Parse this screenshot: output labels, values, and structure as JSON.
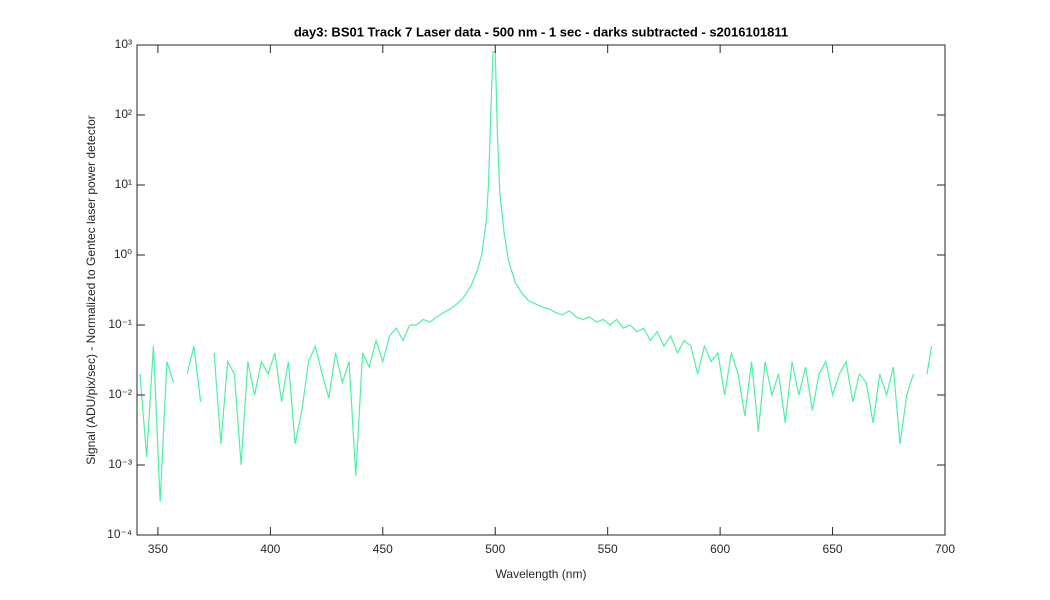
{
  "chart_data": {
    "type": "line",
    "title": "day3: BS01  Track 7 Laser data - 500 nm - 1 sec - darks subtracted - s2016101811",
    "xlabel": "Wavelength (nm)",
    "ylabel": "Signal (ADU/pix/sec) - Normalized to Gentec laser power detector",
    "ylog": true,
    "xlim": [
      340.7,
      700
    ],
    "ylim": [
      0.0001,
      1000
    ],
    "xticks": [
      350,
      400,
      450,
      500,
      550,
      600,
      650,
      700
    ],
    "yticks": [
      {
        "value": 0.0001,
        "label": "10⁻⁴"
      },
      {
        "value": 0.001,
        "label": "10⁻³"
      },
      {
        "value": 0.01,
        "label": "10⁻²"
      },
      {
        "value": 0.1,
        "label": "10⁻¹"
      },
      {
        "value": 1,
        "label": "10⁰"
      },
      {
        "value": 10,
        "label": "10¹"
      },
      {
        "value": 100,
        "label": "10²"
      },
      {
        "value": 1000,
        "label": "10³"
      }
    ],
    "x": [
      342,
      345,
      348,
      351,
      354,
      357,
      360,
      363,
      366,
      369,
      372,
      375,
      378,
      381,
      384,
      387,
      390,
      393,
      396,
      399,
      402,
      405,
      408,
      411,
      414,
      417,
      420,
      423,
      426,
      429,
      432,
      435,
      438,
      441,
      444,
      447,
      450,
      453,
      456,
      459,
      462,
      465,
      468,
      471,
      474,
      477,
      480,
      483,
      486,
      489,
      492,
      494,
      496,
      497,
      498,
      499,
      500,
      501,
      502,
      504,
      506,
      509,
      512,
      515,
      518,
      521,
      524,
      527,
      530,
      533,
      536,
      539,
      542,
      545,
      548,
      551,
      554,
      557,
      560,
      563,
      566,
      569,
      572,
      575,
      578,
      581,
      584,
      587,
      590,
      593,
      596,
      599,
      602,
      605,
      608,
      611,
      614,
      617,
      620,
      623,
      626,
      629,
      632,
      635,
      638,
      641,
      644,
      647,
      650,
      653,
      656,
      659,
      662,
      665,
      668,
      671,
      674,
      677,
      680,
      683,
      686,
      689,
      692,
      694
    ],
    "series": [
      {
        "color": "#4ef0a4",
        "values": [
          0.02,
          0.0013,
          0.05,
          0.0003,
          0.03,
          0.015,
          null,
          0.02,
          0.05,
          0.008,
          null,
          0.04,
          0.002,
          0.03,
          0.02,
          0.001,
          0.03,
          0.01,
          0.03,
          0.02,
          0.04,
          0.008,
          0.03,
          0.002,
          0.006,
          0.03,
          0.05,
          0.02,
          0.009,
          0.04,
          0.015,
          0.03,
          0.0007,
          0.04,
          0.025,
          0.06,
          0.03,
          0.07,
          0.09,
          0.06,
          0.1,
          0.1,
          0.12,
          0.11,
          0.13,
          0.15,
          0.17,
          0.2,
          0.25,
          0.35,
          0.6,
          1,
          3,
          10,
          100,
          800,
          800,
          50,
          8,
          2,
          0.8,
          0.4,
          0.28,
          0.22,
          0.2,
          0.18,
          0.17,
          0.15,
          0.14,
          0.16,
          0.13,
          0.12,
          0.13,
          0.11,
          0.12,
          0.1,
          0.12,
          0.09,
          0.1,
          0.08,
          0.09,
          0.06,
          0.08,
          0.05,
          0.07,
          0.04,
          0.06,
          0.05,
          0.02,
          0.05,
          0.03,
          0.04,
          0.01,
          0.04,
          0.02,
          0.005,
          0.03,
          0.003,
          0.03,
          0.01,
          0.02,
          0.004,
          0.03,
          0.01,
          0.025,
          0.006,
          0.02,
          0.03,
          0.01,
          0.02,
          0.03,
          0.008,
          0.02,
          0.015,
          0.004,
          0.02,
          0.01,
          0.025,
          0.002,
          0.01,
          0.02,
          null,
          0.02,
          0.05
        ]
      }
    ]
  }
}
